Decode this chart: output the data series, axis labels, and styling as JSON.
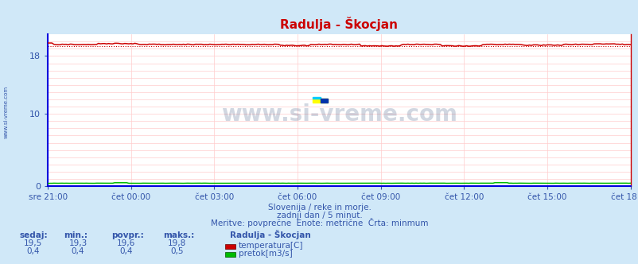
{
  "title": "Radulja - Škocjan",
  "bg_color": "#d0e8f8",
  "plot_bg_color": "#ffffff",
  "grid_color": "#ffcccc",
  "spine_color": "#0000dd",
  "ylim": [
    0,
    21.0
  ],
  "yticks": [
    0,
    10,
    18
  ],
  "xlabel_ticks": [
    "sre 21:00",
    "čet 00:00",
    "čet 03:00",
    "čet 06:00",
    "čet 09:00",
    "čet 12:00",
    "čet 15:00",
    "čet 18:00"
  ],
  "n_points": 289,
  "temp_min": 19.3,
  "temp_max": 19.8,
  "temp_color": "#cc0000",
  "flow_color": "#00bb00",
  "subtitle1": "Slovenija / reke in morje.",
  "subtitle2": "zadnji dan / 5 minut.",
  "subtitle3": "Meritve: povprečne  Enote: metrične  Črta: minmum",
  "label_color": "#3355aa",
  "title_color": "#cc0000",
  "watermark": "www.si-vreme.com",
  "left_label": "www.si-vreme.com",
  "table_headers": [
    "sedaj:",
    "min.:",
    "povpr.:",
    "maks.:"
  ],
  "table_temp": [
    "19,5",
    "19,3",
    "19,6",
    "19,8"
  ],
  "table_flow": [
    "0,4",
    "0,4",
    "0,4",
    "0,5"
  ],
  "legend_title": "Radulja - Škocjan",
  "legend_temp_label": "temperatura[C]",
  "legend_flow_label": "pretok[m3/s]"
}
